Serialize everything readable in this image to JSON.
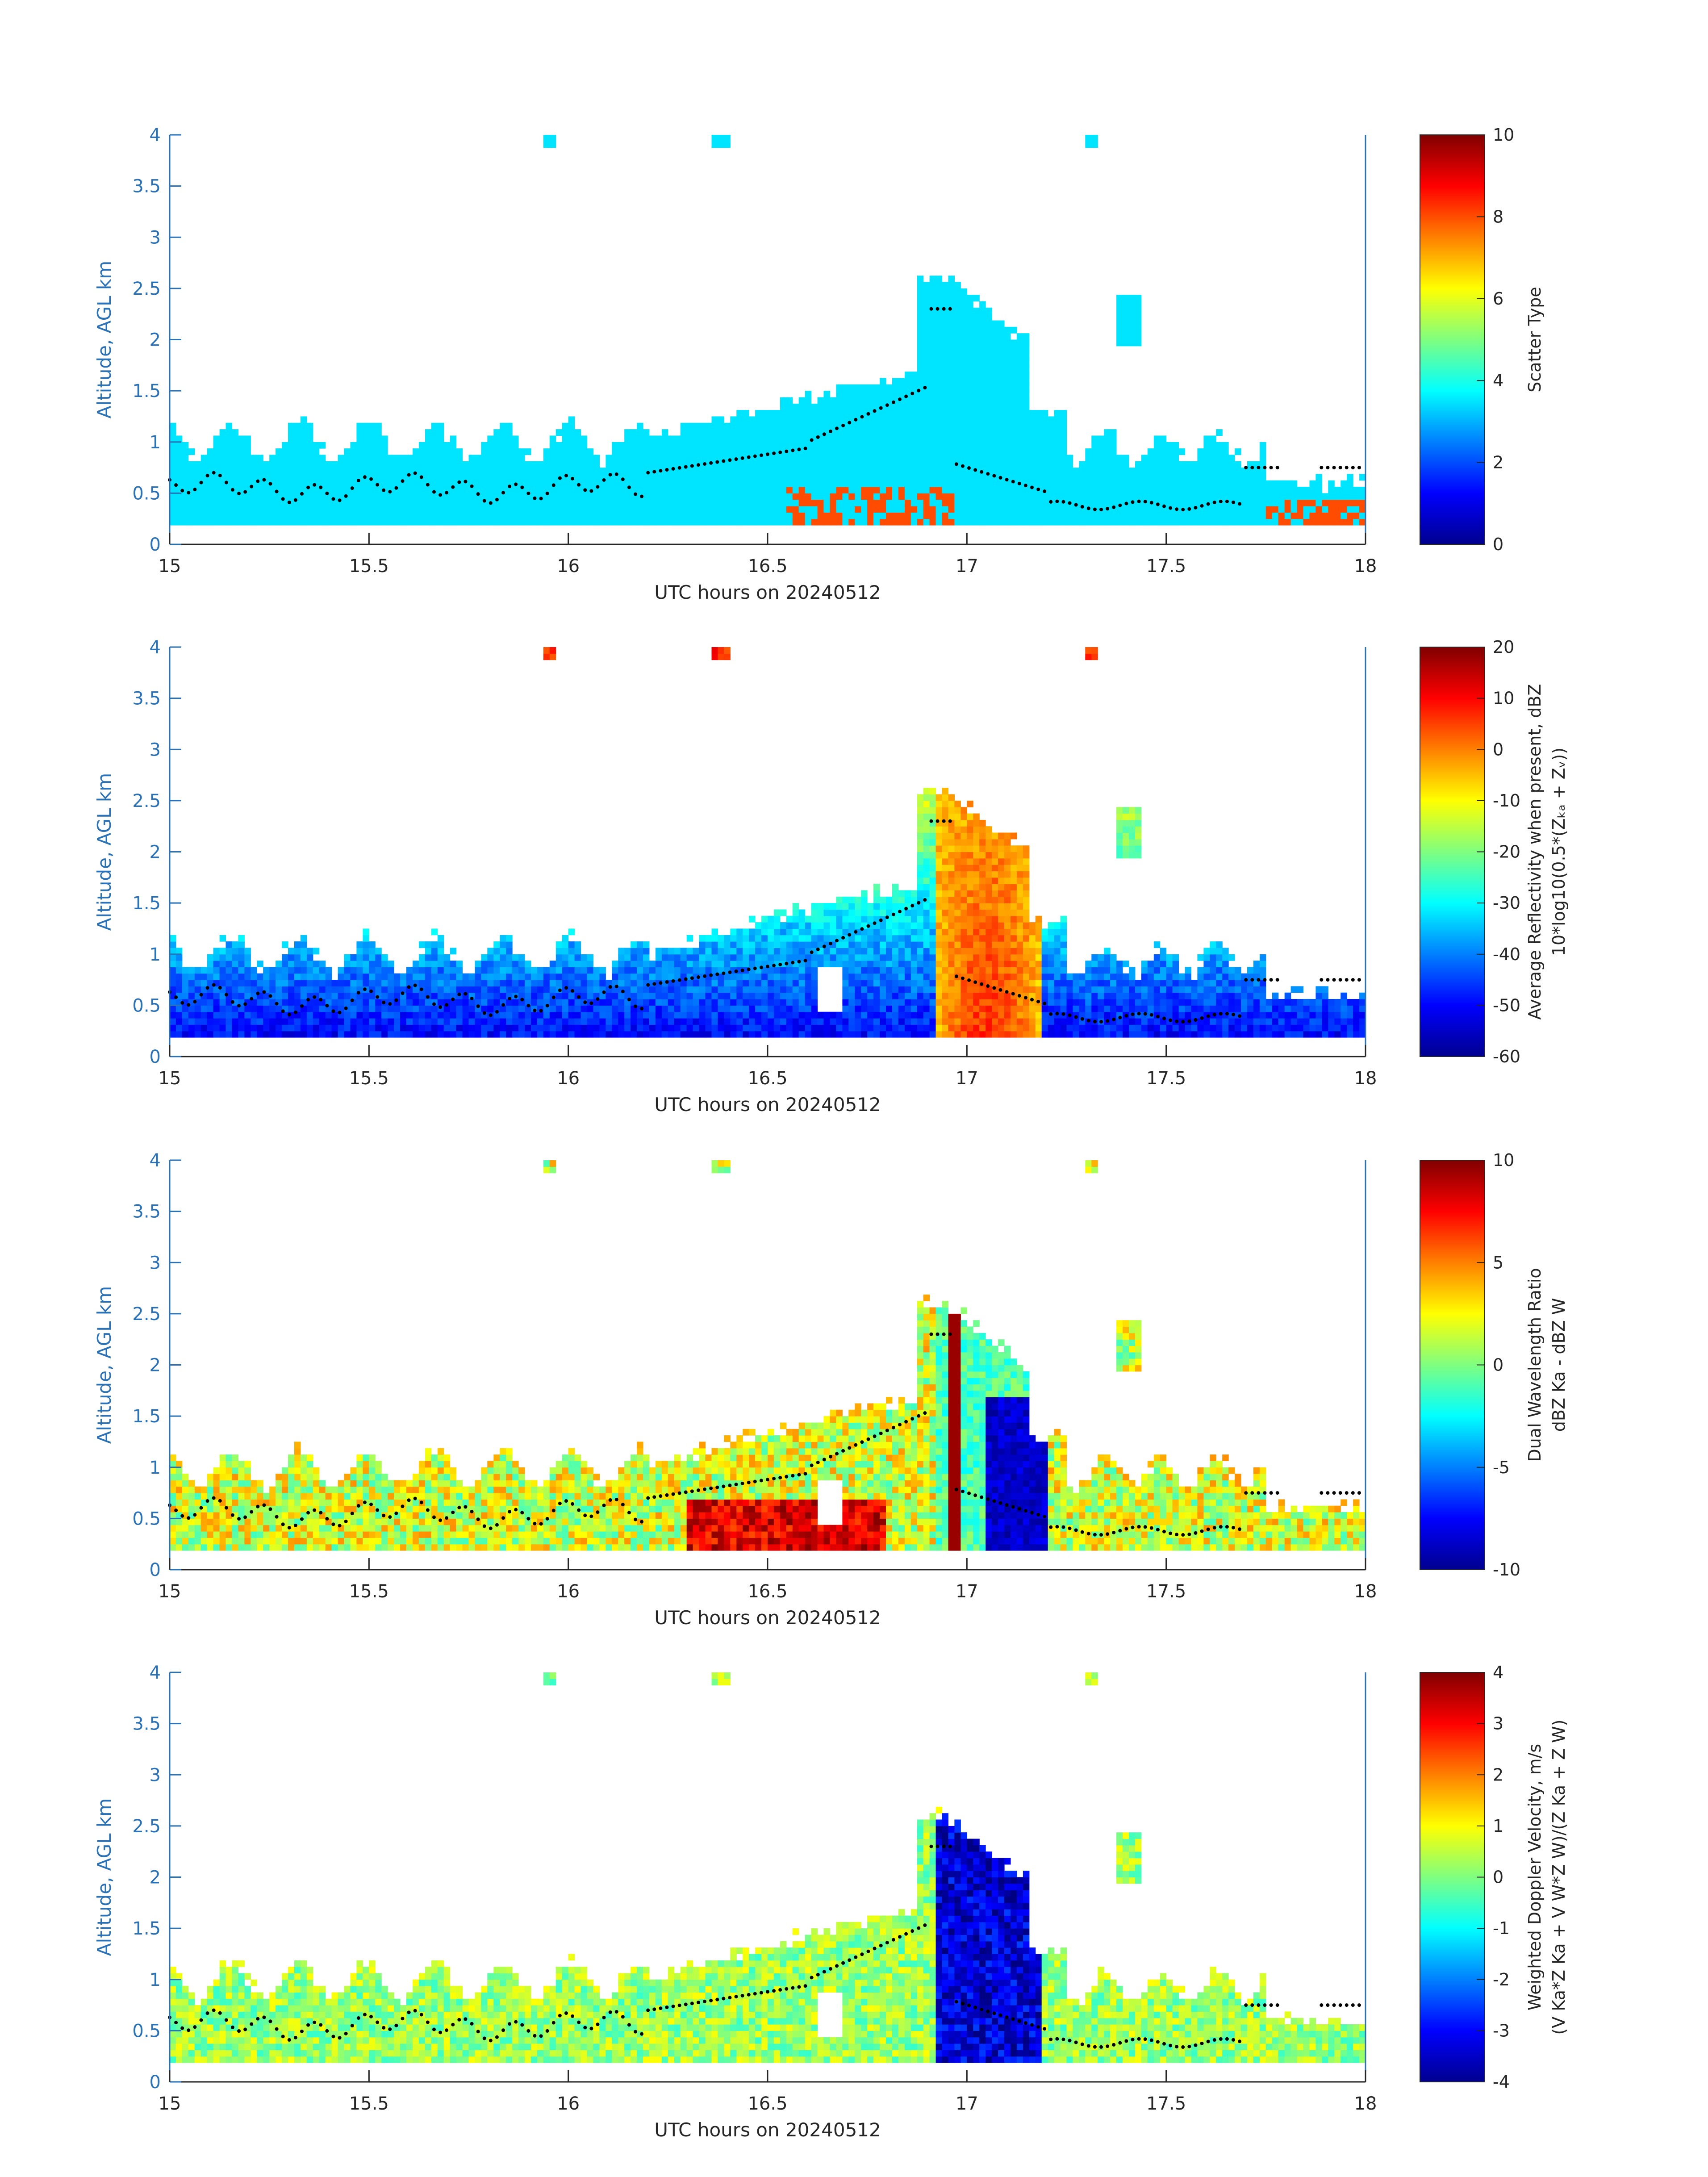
{
  "figure": {
    "panels": [
      {
        "id": "scatter",
        "ylabel": "Altitude, AGL km",
        "xlabel": "UTC hours on 20240512",
        "cbar_label_lines": [
          "Scatter Type"
        ],
        "cbar_ticks": [
          "0",
          "2",
          "4",
          "6",
          "8",
          "10"
        ],
        "cbar_range": [
          0,
          10
        ]
      },
      {
        "id": "reflectivity",
        "ylabel": "Altitude, AGL km",
        "xlabel": "UTC hours on 20240512",
        "cbar_label_lines": [
          "Average Reflectivity when present, dBZ",
          "10*log10(0.5*(Zₖₐ + Zᵥ))"
        ],
        "cbar_ticks": [
          "-60",
          "-50",
          "-40",
          "-30",
          "-20",
          "-10",
          "0",
          "10",
          "20"
        ],
        "cbar_range": [
          -60,
          20
        ]
      },
      {
        "id": "dwr",
        "ylabel": "Altitude, AGL km",
        "xlabel": "UTC hours on 20240512",
        "cbar_label_lines": [
          "Dual Wavelength Ratio",
          "dBZ Ka - dBZ W"
        ],
        "cbar_ticks": [
          "-10",
          "-5",
          "0",
          "5",
          "10"
        ],
        "cbar_range": [
          -10,
          10
        ]
      },
      {
        "id": "doppler",
        "ylabel": "Altitude, AGL km",
        "xlabel": "UTC hours on 20240512",
        "cbar_label_lines": [
          "Weighted Doppler Velocity, m/s",
          "(V Ka*Z Ka + V W*Z W)/(Z Ka + Z W)"
        ],
        "cbar_ticks": [
          "-4",
          "-3",
          "-2",
          "-1",
          "0",
          "1",
          "2",
          "3",
          "4"
        ],
        "cbar_range": [
          -4,
          4
        ]
      }
    ]
  },
  "chart_data": [
    {
      "type": "heatmap",
      "title": "",
      "xlabel": "UTC hours on 20240512",
      "ylabel": "Altitude, AGL km",
      "x_ticks": [
        "15",
        "15.5",
        "16",
        "16.5",
        "17",
        "17.5",
        "18"
      ],
      "y_ticks": [
        "0",
        "0.5",
        "1",
        "1.5",
        "2",
        "2.5",
        "3",
        "3.5",
        "4"
      ],
      "xlim": [
        15,
        18
      ],
      "ylim": [
        0,
        4
      ],
      "colorbar": {
        "label": "Scatter Type",
        "range": [
          0,
          10
        ],
        "colormap": "jet"
      },
      "notes": "Scatter type mostly ~3.5 (cyan) from 0.2 to 1.2 km; value ~8 (red) near surface at 16.55-16.95 h and 17.7-18 h. Black dots mark cloud-base height."
    },
    {
      "type": "heatmap",
      "title": "",
      "xlabel": "UTC hours on 20240512",
      "ylabel": "Altitude, AGL km",
      "x_ticks": [
        "15",
        "15.5",
        "16",
        "16.5",
        "17",
        "17.5",
        "18"
      ],
      "y_ticks": [
        "0",
        "0.5",
        "1",
        "1.5",
        "2",
        "2.5",
        "3",
        "3.5",
        "4"
      ],
      "xlim": [
        15,
        18
      ],
      "ylim": [
        0,
        4
      ],
      "colorbar": {
        "label": "Average Reflectivity when present, dBZ",
        "range": [
          -60,
          20
        ],
        "colormap": "jet"
      },
      "notes": "Reflectivity -55 to -35 dBZ in shallow cloud layer; precipitation core near 16.95-17.15 h reaching 0 to 10 dBZ up to 2.7 km."
    },
    {
      "type": "heatmap",
      "title": "",
      "xlabel": "UTC hours on 20240512",
      "ylabel": "Altitude, AGL km",
      "x_ticks": [
        "15",
        "15.5",
        "16",
        "16.5",
        "17",
        "17.5",
        "18"
      ],
      "y_ticks": [
        "0",
        "0.5",
        "1",
        "1.5",
        "2",
        "2.5",
        "3",
        "3.5",
        "4"
      ],
      "xlim": [
        15,
        18
      ],
      "ylim": [
        0,
        4
      ],
      "colorbar": {
        "label": "Dual Wavelength Ratio",
        "range": [
          -10,
          10
        ],
        "colormap": "jet"
      },
      "notes": "DWR mostly -1 to 3 dB in cloud layer with 8-10 dB near surface 16.3-16.75 h; strong 10 dB column near 16.97 h and -8 to -10 dB at 17.05-17.2 h."
    },
    {
      "type": "heatmap",
      "title": "",
      "xlabel": "UTC hours on 20240512",
      "ylabel": "Altitude, AGL km",
      "x_ticks": [
        "15",
        "15.5",
        "16",
        "16.5",
        "17",
        "17.5",
        "18"
      ],
      "y_ticks": [
        "0",
        "0.5",
        "1",
        "1.5",
        "2",
        "2.5",
        "3",
        "3.5",
        "4"
      ],
      "xlim": [
        15,
        18
      ],
      "ylim": [
        0,
        4
      ],
      "colorbar": {
        "label": "Weighted Doppler Velocity, m/s",
        "range": [
          -4,
          4
        ],
        "colormap": "jet"
      },
      "notes": "Velocity near 0 to +0.5 m/s in cloud layer; falling precipitation -3 to -4 m/s at 16.93-17.2 h up to 2.7 km."
    }
  ]
}
